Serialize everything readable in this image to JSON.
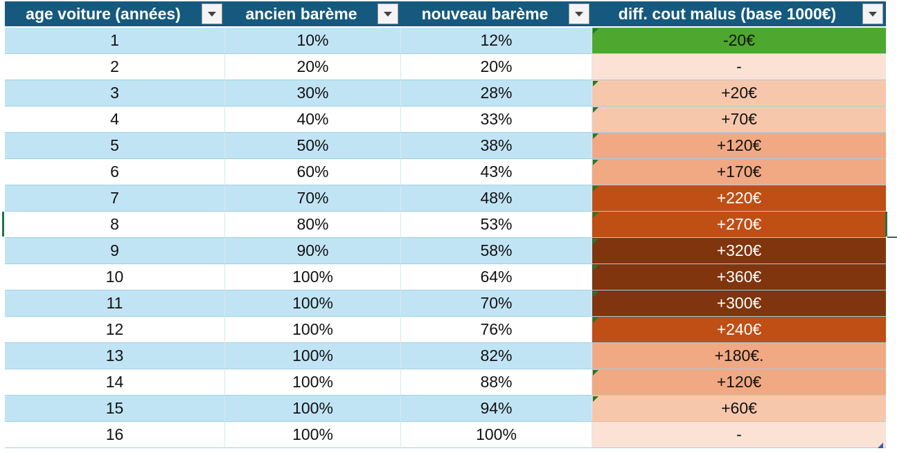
{
  "table": {
    "headers": [
      {
        "label": "age voiture (années)",
        "name": "header-age-voiture"
      },
      {
        "label": "ancien barème",
        "name": "header-ancien-bareme"
      },
      {
        "label": "nouveau barème",
        "name": "header-nouveau-bareme"
      },
      {
        "label": "diff. cout malus (base 1000€)",
        "name": "header-diff-cout-malus"
      }
    ],
    "rows": [
      {
        "age": "1",
        "ancien": "10%",
        "nouveau": "12%",
        "diff": "-20€",
        "diff_color": "#4ea72e",
        "diff_text_color": "#111111",
        "error_marker": true
      },
      {
        "age": "2",
        "ancien": "20%",
        "nouveau": "20%",
        "diff": "-",
        "diff_color": "#fbe2d5",
        "diff_text_color": "#111111",
        "error_marker": false
      },
      {
        "age": "3",
        "ancien": "30%",
        "nouveau": "28%",
        "diff": "+20€",
        "diff_color": "#f7c7ac",
        "diff_text_color": "#111111",
        "error_marker": true
      },
      {
        "age": "4",
        "ancien": "40%",
        "nouveau": "33%",
        "diff": "+70€",
        "diff_color": "#f7c7ac",
        "diff_text_color": "#111111",
        "error_marker": true
      },
      {
        "age": "5",
        "ancien": "50%",
        "nouveau": "38%",
        "diff": "+120€",
        "diff_color": "#f1a983",
        "diff_text_color": "#111111",
        "error_marker": true
      },
      {
        "age": "6",
        "ancien": "60%",
        "nouveau": "43%",
        "diff": "+170€",
        "diff_color": "#f1a983",
        "diff_text_color": "#111111",
        "error_marker": true
      },
      {
        "age": "7",
        "ancien": "70%",
        "nouveau": "48%",
        "diff": "+220€",
        "diff_color": "#c04f15",
        "diff_text_color": "#ffffff",
        "error_marker": true
      },
      {
        "age": "8",
        "ancien": "80%",
        "nouveau": "53%",
        "diff": "+270€",
        "diff_color": "#c04f15",
        "diff_text_color": "#ffffff",
        "error_marker": true
      },
      {
        "age": "9",
        "ancien": "90%",
        "nouveau": "58%",
        "diff": "+320€",
        "diff_color": "#80350e",
        "diff_text_color": "#ffffff",
        "error_marker": true
      },
      {
        "age": "10",
        "ancien": "100%",
        "nouveau": "64%",
        "diff": "+360€",
        "diff_color": "#80350e",
        "diff_text_color": "#ffffff",
        "error_marker": true
      },
      {
        "age": "11",
        "ancien": "100%",
        "nouveau": "70%",
        "diff": "+300€",
        "diff_color": "#80350e",
        "diff_text_color": "#ffffff",
        "error_marker": true
      },
      {
        "age": "12",
        "ancien": "100%",
        "nouveau": "76%",
        "diff": "+240€",
        "diff_color": "#c04f15",
        "diff_text_color": "#ffffff",
        "error_marker": true
      },
      {
        "age": "13",
        "ancien": "100%",
        "nouveau": "82%",
        "diff": "+180€.",
        "diff_color": "#f1a983",
        "diff_text_color": "#111111",
        "error_marker": false
      },
      {
        "age": "14",
        "ancien": "100%",
        "nouveau": "88%",
        "diff": "+120€",
        "diff_color": "#f1a983",
        "diff_text_color": "#111111",
        "error_marker": true
      },
      {
        "age": "15",
        "ancien": "100%",
        "nouveau": "94%",
        "diff": "+60€",
        "diff_color": "#f7c7ac",
        "diff_text_color": "#111111",
        "error_marker": true
      },
      {
        "age": "16",
        "ancien": "100%",
        "nouveau": "100%",
        "diff": "-",
        "diff_color": "#fbe2d5",
        "diff_text_color": "#111111",
        "error_marker": false
      }
    ]
  },
  "colors": {
    "header_bg": "#16597e",
    "band_row_bg": "#c1e4f5",
    "plain_row_bg": "#ffffff",
    "selection_border": "#217346",
    "error_marker": "#1f7a2c"
  },
  "icons": {
    "filter": "chevron-down-icon",
    "error_marker": "green-triangle-icon"
  }
}
